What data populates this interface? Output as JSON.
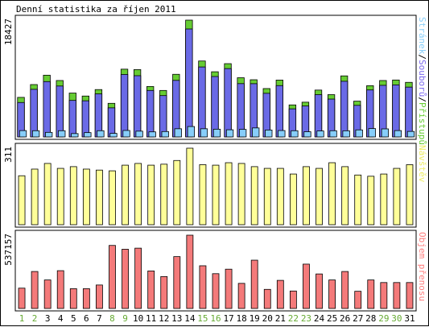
{
  "title": "Denní statistika za říjen 2011",
  "chart_data": {
    "type": "bar",
    "categories": [
      "1",
      "2",
      "3",
      "4",
      "5",
      "6",
      "7",
      "8",
      "9",
      "10",
      "11",
      "12",
      "13",
      "14",
      "15",
      "16",
      "17",
      "18",
      "19",
      "20",
      "21",
      "22",
      "23",
      "24",
      "25",
      "26",
      "27",
      "28",
      "29",
      "30",
      "31"
    ],
    "weekend_days": [
      "1",
      "2",
      "8",
      "9",
      "15",
      "16",
      "22",
      "23",
      "29",
      "30"
    ],
    "panels": [
      {
        "id": "hits",
        "max_label": "18427",
        "max": 18427,
        "label_parts": [
          {
            "text": "Stránek",
            "color": "#87cefa"
          },
          {
            "text": "/",
            "color": "#000000"
          },
          {
            "text": "Souborů",
            "color": "#7b68ee"
          },
          {
            "text": "/",
            "color": "#000000"
          },
          {
            "text": "Přístupů",
            "color": "#66cc33"
          }
        ],
        "series": [
          {
            "name": "Přístupů",
            "color": "#66cc33",
            "values": [
              6240,
              8260,
              9740,
              8900,
              6920,
              6450,
              7470,
              5300,
              10690,
              10620,
              7960,
              7330,
              9880,
              18427,
              11980,
              10280,
              11560,
              9340,
              9020,
              7630,
              8970,
              5050,
              5480,
              7390,
              6670,
              9630,
              5640,
              8080,
              8900,
              8980,
              8610
            ]
          },
          {
            "name": "Souborů",
            "color": "#6a6ae6",
            "values": [
              5430,
              7510,
              8730,
              8030,
              5760,
              5700,
              6790,
              4590,
              9850,
              9660,
              7330,
              6520,
              8920,
              17030,
              11040,
              9530,
              10780,
              8410,
              8400,
              6880,
              8100,
              4430,
              4880,
              6670,
              5970,
              8780,
              4980,
              7410,
              8140,
              8210,
              7860
            ]
          },
          {
            "name": "Stránek",
            "color": "#87cefa",
            "values": [
              1000,
              980,
              720,
              980,
              530,
              680,
              980,
              560,
              1020,
              910,
              800,
              850,
              1290,
              1640,
              1290,
              1220,
              1130,
              1190,
              1420,
              1090,
              1010,
              980,
              820,
              940,
              980,
              970,
              1110,
              1320,
              1270,
              1000,
              870
            ]
          }
        ]
      },
      {
        "id": "visits",
        "max_label": "311",
        "max": 311,
        "label_parts": [
          {
            "text": "Návštěv",
            "color": "#eeee66"
          }
        ],
        "series": [
          {
            "name": "Návštěv",
            "color": "#ffff99",
            "values": [
              199,
              226,
              249,
              229,
              236,
              226,
              222,
              219,
              242,
              249,
              242,
              246,
              261,
              311,
              244,
              242,
              252,
              249,
              236,
              229,
              229,
              206,
              236,
              229,
              252,
              236,
              202,
              197,
              206,
              229,
              244
            ]
          }
        ]
      },
      {
        "id": "transfer",
        "max_label": "537157",
        "max": 537157,
        "label_parts": [
          {
            "text": "Objem přenosu",
            "color": "#ff8080"
          }
        ],
        "series": [
          {
            "name": "Objem přenosu",
            "color": "#f47a7a",
            "values": [
              149000,
              271000,
              209000,
              277000,
              145000,
              145000,
              172000,
              462000,
              434000,
              442000,
              275000,
              234000,
              380000,
              537157,
              313000,
              255000,
              288000,
              184000,
              354000,
              140000,
              206000,
              128000,
              325000,
              253000,
              209000,
              271000,
              126000,
              209000,
              190000,
              190000,
              190000
            ]
          }
        ]
      }
    ]
  }
}
